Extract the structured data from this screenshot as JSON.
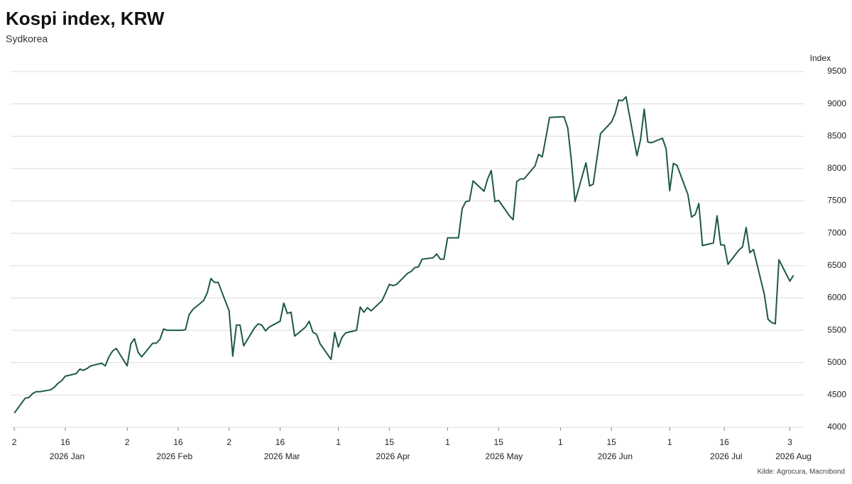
{
  "chart_data": {
    "type": "line",
    "title": "Kospi index, KRW",
    "subtitle": "Sydkorea",
    "y_axis_label": "Index",
    "source": "Kilde: Agrocura, Macrobond",
    "grid": true,
    "ylim": [
      4000,
      9500
    ],
    "yticks": [
      4000,
      4500,
      5000,
      5500,
      6000,
      6500,
      7000,
      7500,
      8000,
      8500,
      9000,
      9500
    ],
    "xlim": [
      "2026-01-01",
      "2026-08-07"
    ],
    "xticks": [
      {
        "value": "2026-01-02",
        "label": "2"
      },
      {
        "value": "2026-01-16",
        "label": "16"
      },
      {
        "value": "2026-02-02",
        "label": "2"
      },
      {
        "value": "2026-02-16",
        "label": "16"
      },
      {
        "value": "2026-03-02",
        "label": "2"
      },
      {
        "value": "2026-03-16",
        "label": "16"
      },
      {
        "value": "2026-04-01",
        "label": "1"
      },
      {
        "value": "2026-04-15",
        "label": "15"
      },
      {
        "value": "2026-05-01",
        "label": "1"
      },
      {
        "value": "2026-05-15",
        "label": "15"
      },
      {
        "value": "2026-06-01",
        "label": "1"
      },
      {
        "value": "2026-06-15",
        "label": "15"
      },
      {
        "value": "2026-07-01",
        "label": "1"
      },
      {
        "value": "2026-07-16",
        "label": "16"
      },
      {
        "value": "2026-08-03",
        "label": "3"
      }
    ],
    "x_periods": [
      {
        "value": "2026-01",
        "label": "2026 Jan"
      },
      {
        "value": "2026-02",
        "label": "2026 Feb"
      },
      {
        "value": "2026-03",
        "label": "2026 Mar"
      },
      {
        "value": "2026-04",
        "label": "2026 Apr"
      },
      {
        "value": "2026-05",
        "label": "2026 May"
      },
      {
        "value": "2026-06",
        "label": "2026 Jun"
      },
      {
        "value": "2026-07",
        "label": "2026 Jul"
      },
      {
        "value": "2026-08",
        "label": "2026 Aug"
      }
    ],
    "x": [
      "2026-01-02",
      "2026-01-05",
      "2026-01-06",
      "2026-01-07",
      "2026-01-08",
      "2026-01-09",
      "2026-01-12",
      "2026-01-13",
      "2026-01-14",
      "2026-01-15",
      "2026-01-16",
      "2026-01-19",
      "2026-01-20",
      "2026-01-21",
      "2026-01-22",
      "2026-01-23",
      "2026-01-26",
      "2026-01-27",
      "2026-01-28",
      "2026-01-29",
      "2026-01-30",
      "2026-02-02",
      "2026-02-03",
      "2026-02-04",
      "2026-02-05",
      "2026-02-06",
      "2026-02-09",
      "2026-02-10",
      "2026-02-11",
      "2026-02-12",
      "2026-02-13",
      "2026-02-16",
      "2026-02-17",
      "2026-02-18",
      "2026-02-19",
      "2026-02-20",
      "2026-02-23",
      "2026-02-24",
      "2026-02-25",
      "2026-02-26",
      "2026-02-27",
      "2026-03-02",
      "2026-03-03",
      "2026-03-04",
      "2026-03-05",
      "2026-03-06",
      "2026-03-09",
      "2026-03-10",
      "2026-03-11",
      "2026-03-12",
      "2026-03-13",
      "2026-03-16",
      "2026-03-17",
      "2026-03-18",
      "2026-03-19",
      "2026-03-20",
      "2026-03-23",
      "2026-03-24",
      "2026-03-25",
      "2026-03-26",
      "2026-03-27",
      "2026-03-30",
      "2026-03-31",
      "2026-04-01",
      "2026-04-02",
      "2026-04-03",
      "2026-04-06",
      "2026-04-07",
      "2026-04-08",
      "2026-04-09",
      "2026-04-10",
      "2026-04-13",
      "2026-04-14",
      "2026-04-15",
      "2026-04-16",
      "2026-04-17",
      "2026-04-20",
      "2026-04-21",
      "2026-04-22",
      "2026-04-23",
      "2026-04-24",
      "2026-04-27",
      "2026-04-28",
      "2026-04-29",
      "2026-04-30",
      "2026-05-01",
      "2026-05-04",
      "2026-05-05",
      "2026-05-06",
      "2026-05-07",
      "2026-05-08",
      "2026-05-11",
      "2026-05-12",
      "2026-05-13",
      "2026-05-14",
      "2026-05-15",
      "2026-05-18",
      "2026-05-19",
      "2026-05-20",
      "2026-05-21",
      "2026-05-22",
      "2026-05-25",
      "2026-05-26",
      "2026-05-27",
      "2026-05-28",
      "2026-05-29",
      "2026-06-01",
      "2026-06-02",
      "2026-06-03",
      "2026-06-04",
      "2026-06-05",
      "2026-06-08",
      "2026-06-09",
      "2026-06-10",
      "2026-06-11",
      "2026-06-12",
      "2026-06-15",
      "2026-06-16",
      "2026-06-17",
      "2026-06-18",
      "2026-06-19",
      "2026-06-22",
      "2026-06-23",
      "2026-06-24",
      "2026-06-25",
      "2026-06-26",
      "2026-06-29",
      "2026-06-30",
      "2026-07-01",
      "2026-07-02",
      "2026-07-03",
      "2026-07-06",
      "2026-07-07",
      "2026-07-08",
      "2026-07-09",
      "2026-07-10",
      "2026-07-13",
      "2026-07-14",
      "2026-07-15",
      "2026-07-16",
      "2026-07-17",
      "2026-07-20",
      "2026-07-21",
      "2026-07-22",
      "2026-07-23",
      "2026-07-24",
      "2026-07-27",
      "2026-07-28",
      "2026-07-29",
      "2026-07-30",
      "2026-07-31",
      "2026-08-03",
      "2026-08-04"
    ],
    "series": [
      {
        "name": "Kospi",
        "color": "#1d5a3e",
        "values": [
          4220,
          4450,
          4460,
          4520,
          4550,
          4550,
          4580,
          4620,
          4680,
          4720,
          4790,
          4830,
          4900,
          4880,
          4910,
          4950,
          4990,
          4950,
          5090,
          5180,
          5220,
          4950,
          5290,
          5370,
          5160,
          5090,
          5300,
          5300,
          5360,
          5520,
          5500,
          5500,
          5500,
          5510,
          5740,
          5820,
          5960,
          6080,
          6300,
          6240,
          6240,
          5800,
          5100,
          5580,
          5580,
          5260,
          5540,
          5600,
          5580,
          5490,
          5550,
          5640,
          5920,
          5760,
          5780,
          5410,
          5550,
          5640,
          5470,
          5440,
          5290,
          5050,
          5470,
          5240,
          5390,
          5460,
          5500,
          5860,
          5780,
          5850,
          5800,
          5960,
          6080,
          6210,
          6190,
          6210,
          6380,
          6410,
          6470,
          6480,
          6600,
          6620,
          6680,
          6600,
          6600,
          6930,
          6930,
          7380,
          7490,
          7500,
          7810,
          7650,
          7840,
          7970,
          7490,
          7510,
          7270,
          7210,
          7800,
          7840,
          7840,
          8040,
          8220,
          8180,
          8480,
          8790,
          8800,
          8800,
          8630,
          8120,
          7490,
          8090,
          7730,
          7760,
          8150,
          8540,
          8720,
          8850,
          9060,
          9050,
          9110,
          8200,
          8450,
          8920,
          8410,
          8400,
          8470,
          8310,
          7660,
          8080,
          8050,
          7600,
          7250,
          7290,
          7460,
          6810,
          6850,
          7270,
          6820,
          6820,
          6520,
          6740,
          6790,
          7090,
          6700,
          6750,
          6050,
          5670,
          5620,
          5600,
          6590,
          6260,
          6350
        ]
      }
    ]
  }
}
